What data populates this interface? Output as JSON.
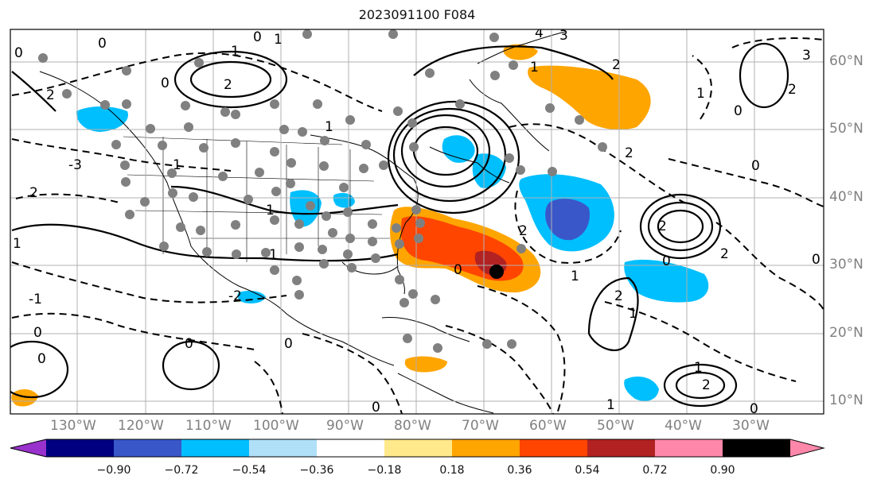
{
  "title": "2023091100 F084",
  "lat_labels": [
    "60°N",
    "50°N",
    "40°N",
    "30°N",
    "20°N",
    "10°N"
  ],
  "lon_labels": [
    "130°W",
    "120°W",
    "110°W",
    "100°W",
    "90°W",
    "80°W",
    "70°W",
    "60°W",
    "50°W",
    "40°W",
    "30°W"
  ],
  "colorbar": {
    "colors": [
      "#9932cc",
      "#000080",
      "#3a57c9",
      "#00bfff",
      "#b0e0f8",
      "#ffffff",
      "#ffe98a",
      "#ffa500",
      "#ff4500",
      "#b22222",
      "#ff88aa"
    ],
    "labels": [
      "−0.90",
      "−0.72",
      "−0.54",
      "−0.36",
      "−0.18",
      "0.18",
      "0.36",
      "0.54",
      "0.72",
      "0.90"
    ]
  },
  "contour_labels": [
    "0",
    "1",
    "2",
    "-1",
    "-2",
    "3",
    "4",
    "-3"
  ],
  "colors": {
    "warm_orange": "#ffa500",
    "warm_red": "#ff4500",
    "dark_red": "#b22222",
    "cool_light": "#00bfff",
    "cool_mid": "#3a57c9",
    "dots": "#808080",
    "storm": "#000000"
  }
}
